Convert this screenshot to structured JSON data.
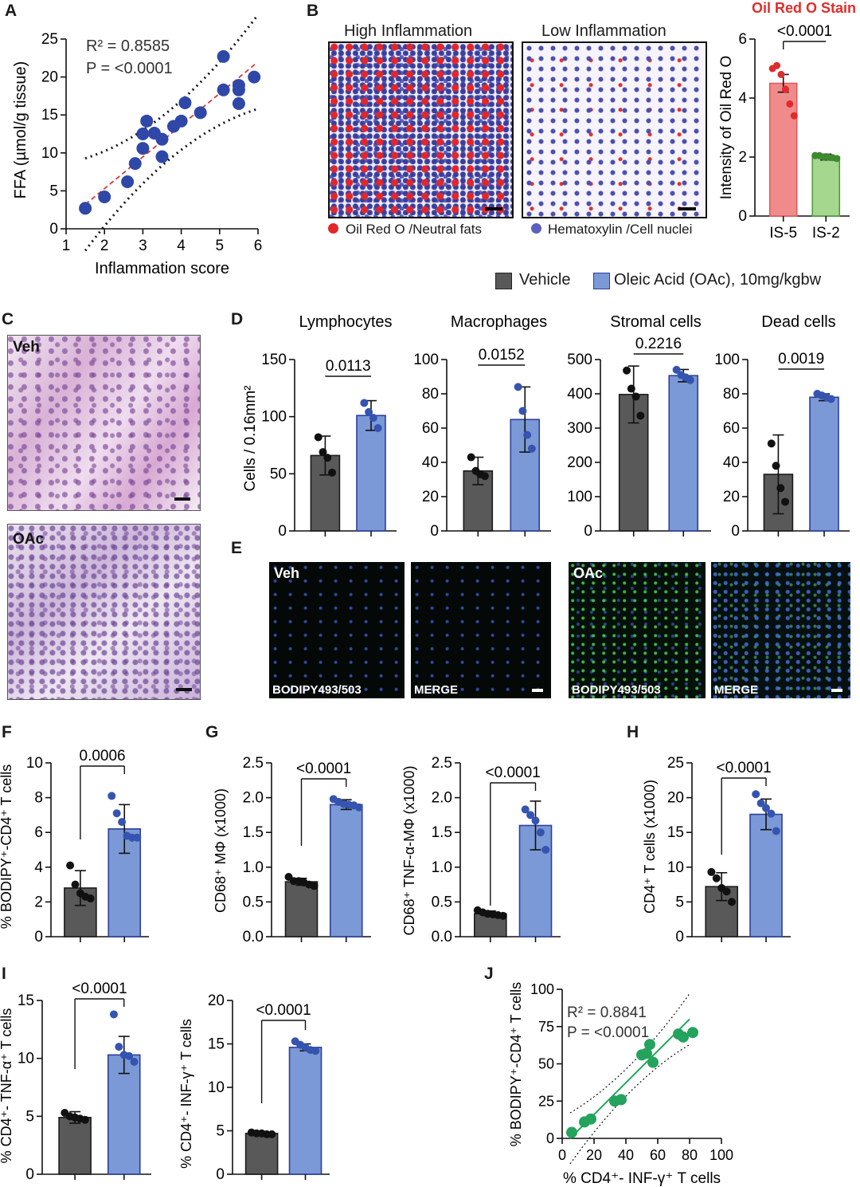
{
  "panel_letters": {
    "a": "A",
    "b": "B",
    "c": "C",
    "d": "D",
    "e": "E",
    "f": "F",
    "g": "G",
    "h": "H",
    "i": "I",
    "j": "J"
  },
  "legend": {
    "vehicle": "Vehicle",
    "oac": "Oleic Acid (OAc), 10mg/kgbw",
    "vehicle_color": "#595959",
    "oac_color": "#7b99d6"
  },
  "panel_b": {
    "title_high": "High Inflammation",
    "title_low": "Low Inflammation",
    "key_red": "Oil Red O /Neutral fats",
    "key_blue": "Hematoxylin /Cell nuclei",
    "stain_title": "Oil Red O Stain"
  },
  "panel_c": {
    "veh": "Veh",
    "oac": "OAc"
  },
  "panel_e": {
    "veh": "Veh",
    "oac": "OAc",
    "bodipy": "BODIPY493/503",
    "merge": "MERGE"
  },
  "chart_data": [
    {
      "id": "A",
      "type": "scatter",
      "xlabel": "Inflammation score",
      "ylabel": "FFA (µmol/g tissue)",
      "xlim": [
        1,
        6
      ],
      "ylim": [
        0,
        25
      ],
      "xticks": [
        "1",
        "2",
        "3",
        "4",
        "5",
        "6"
      ],
      "yticks": [
        "0",
        "5",
        "10",
        "15",
        "20",
        "25"
      ],
      "annotations": [
        "R² = 0.8585",
        "P = <0.0001"
      ],
      "points": [
        [
          1.5,
          2.7
        ],
        [
          2.0,
          4.2
        ],
        [
          2.6,
          6.2
        ],
        [
          2.8,
          8.6
        ],
        [
          3.0,
          10.6
        ],
        [
          3.0,
          12.5
        ],
        [
          3.1,
          14.2
        ],
        [
          3.3,
          12.6
        ],
        [
          3.5,
          9.5
        ],
        [
          3.5,
          11.8
        ],
        [
          3.8,
          13.5
        ],
        [
          4.0,
          14.2
        ],
        [
          4.1,
          16.6
        ],
        [
          4.5,
          15.3
        ],
        [
          5.1,
          18.3
        ],
        [
          5.1,
          22.7
        ],
        [
          5.5,
          18.3
        ],
        [
          5.5,
          18.9
        ],
        [
          5.5,
          16.5
        ],
        [
          5.9,
          20.0
        ]
      ],
      "fit": [
        [
          1.5,
          3.2
        ],
        [
          5.95,
          21.8
        ]
      ]
    },
    {
      "id": "B",
      "type": "bar",
      "ylabel": "Intensity of Oil Red O",
      "ylim": [
        0,
        6
      ],
      "yticks": [
        "0",
        "2",
        "4",
        "6"
      ],
      "categories": [
        "IS-5",
        "IS-2"
      ],
      "values": [
        4.5,
        2.0
      ],
      "errors": [
        0.3,
        0.1
      ],
      "colors": [
        "#f08b8b",
        "#a6d78f"
      ],
      "points": [
        [
          5.0,
          5.1,
          4.8,
          4.3,
          3.8,
          3.4
        ],
        [
          2.05,
          2.05,
          2.0,
          2.0,
          1.98,
          1.95
        ]
      ],
      "pvalue": "<0.0001"
    },
    {
      "id": "D1",
      "type": "bar",
      "title": "Lymphocytes",
      "ylabel": "Cells / 0.16mm²",
      "ylim": [
        0,
        150
      ],
      "yticks": [
        "0",
        "50",
        "100",
        "150"
      ],
      "values": [
        66,
        101
      ],
      "errors": [
        17,
        13
      ],
      "points": [
        [
          82,
          69,
          64,
          51
        ],
        [
          112,
          104,
          99,
          90
        ]
      ],
      "pvalue": "0.0113"
    },
    {
      "id": "D2",
      "type": "bar",
      "title": "Macrophages",
      "ylim": [
        0,
        100
      ],
      "yticks": [
        "0",
        "20",
        "40",
        "60",
        "80",
        "100"
      ],
      "values": [
        35,
        65
      ],
      "errors": [
        8,
        19
      ],
      "points": [
        [
          43,
          35,
          33,
          32
        ],
        [
          84,
          70,
          56,
          48
        ]
      ],
      "pvalue": "0.0152"
    },
    {
      "id": "D3",
      "type": "bar",
      "title": "Stromal cells",
      "ylim": [
        0,
        500
      ],
      "yticks": [
        "0",
        "100",
        "200",
        "300",
        "400",
        "500"
      ],
      "values": [
        398,
        453
      ],
      "errors": [
        83,
        18
      ],
      "points": [
        [
          468,
          415,
          392,
          336
        ],
        [
          470,
          455,
          448,
          440
        ]
      ],
      "pvalue": "0.2216"
    },
    {
      "id": "D4",
      "type": "bar",
      "title": "Dead cells",
      "ylim": [
        0,
        100
      ],
      "yticks": [
        "0",
        "20",
        "40",
        "60",
        "80",
        "100"
      ],
      "values": [
        33,
        78
      ],
      "errors": [
        23,
        2
      ],
      "points": [
        [
          51,
          38,
          25,
          17
        ],
        [
          80,
          79,
          78,
          77
        ]
      ],
      "pvalue": "0.0019"
    },
    {
      "id": "F",
      "type": "bar",
      "ylabel": "% BODIPY⁺-CD4⁺ T cells",
      "ylim": [
        0,
        10
      ],
      "yticks": [
        "0",
        "2",
        "4",
        "6",
        "8",
        "10"
      ],
      "values": [
        2.8,
        6.2
      ],
      "errors": [
        1.0,
        1.4
      ],
      "points": [
        [
          4.1,
          3.0,
          2.5,
          2.3,
          2.2
        ],
        [
          8.1,
          7.1,
          6.6,
          5.8,
          5.7,
          5.7
        ]
      ],
      "pvalue": "0.0006"
    },
    {
      "id": "G1",
      "type": "bar",
      "ylabel": "CD68⁺ MΦ (x1000)",
      "ylim": [
        0,
        2.5
      ],
      "yticks": [
        "0.0",
        "0.5",
        "1.0",
        "1.5",
        "2.0",
        "2.5"
      ],
      "values": [
        0.79,
        1.9
      ],
      "errors": [
        0.05,
        0.07
      ],
      "points": [
        [
          0.86,
          0.8,
          0.8,
          0.78,
          0.75,
          0.73
        ],
        [
          1.98,
          1.94,
          1.91,
          1.9,
          1.89,
          1.86
        ]
      ],
      "pvalue": "<0.0001"
    },
    {
      "id": "G2",
      "type": "bar",
      "ylabel": "CD68⁺ TNF-α-MΦ (x1000)",
      "ylim": [
        0,
        2.5
      ],
      "yticks": [
        "0.0",
        "0.5",
        "1.0",
        "1.5",
        "2.0",
        "2.5"
      ],
      "values": [
        0.33,
        1.6
      ],
      "errors": [
        0.04,
        0.35
      ],
      "points": [
        [
          0.38,
          0.35,
          0.33,
          0.32,
          0.31,
          0.3
        ],
        [
          1.83,
          1.75,
          1.67,
          1.5,
          1.25
        ]
      ],
      "pvalue": "<0.0001"
    },
    {
      "id": "H",
      "type": "bar",
      "ylabel": "CD4⁺ T cells (x1000)",
      "ylim": [
        0,
        25
      ],
      "yticks": [
        "0",
        "5",
        "10",
        "15",
        "20",
        "25"
      ],
      "values": [
        7.2,
        17.6
      ],
      "errors": [
        2.0,
        2.2
      ],
      "points": [
        [
          9.3,
          8.4,
          7.0,
          6.5,
          5.0
        ],
        [
          20.5,
          19.2,
          18.5,
          17.7,
          15.2
        ]
      ],
      "pvalue": "<0.0001"
    },
    {
      "id": "I1",
      "type": "bar",
      "ylabel": "% CD4⁺- TNF-α⁺ T cells",
      "ylim": [
        0,
        15
      ],
      "yticks": [
        "0",
        "5",
        "10",
        "15"
      ],
      "values": [
        4.9,
        10.3
      ],
      "errors": [
        0.5,
        1.6
      ],
      "points": [
        [
          5.3,
          5.0,
          4.9,
          4.8,
          4.7
        ],
        [
          13.8,
          11.0,
          10.3,
          10.2,
          9.7
        ]
      ],
      "pvalue": "<0.0001"
    },
    {
      "id": "I2",
      "type": "bar",
      "ylabel": "% CD4⁺- INF-γ⁺ T cells",
      "ylim": [
        0,
        20
      ],
      "yticks": [
        "0",
        "5",
        "10",
        "15",
        "20"
      ],
      "values": [
        4.7,
        14.6
      ],
      "errors": [
        0.1,
        0.4
      ],
      "points": [
        [
          4.8,
          4.7,
          4.7,
          4.6,
          4.6
        ],
        [
          15.3,
          14.9,
          14.6,
          14.3,
          14.2
        ]
      ],
      "pvalue": "<0.0001"
    },
    {
      "id": "J",
      "type": "scatter",
      "xlabel": "% CD4⁺- INF-γ⁺ T cells",
      "ylabel": "% BODIPY⁺-CD4⁺ T cells",
      "xlim": [
        0,
        100
      ],
      "ylim": [
        0,
        100
      ],
      "xticks": [
        "0",
        "20",
        "40",
        "60",
        "80",
        "100"
      ],
      "yticks": [
        "0",
        "25",
        "50",
        "75",
        "100"
      ],
      "annotations": [
        "R² = 0.8841",
        "P = <0.0001"
      ],
      "points": [
        [
          6,
          4
        ],
        [
          14,
          11
        ],
        [
          18,
          13
        ],
        [
          33,
          25
        ],
        [
          37,
          26
        ],
        [
          50,
          56
        ],
        [
          53,
          57
        ],
        [
          55,
          63
        ],
        [
          57,
          51
        ],
        [
          73,
          70
        ],
        [
          76,
          68
        ],
        [
          82,
          71
        ]
      ],
      "fit": [
        [
          5,
          0
        ],
        [
          80,
          80
        ]
      ]
    }
  ]
}
